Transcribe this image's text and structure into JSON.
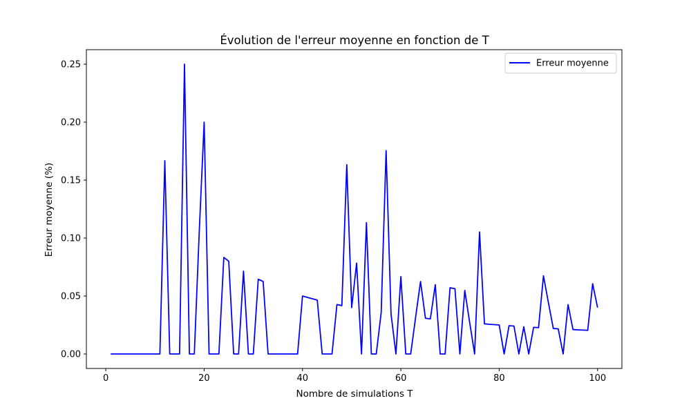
{
  "chart_data": {
    "type": "line",
    "title": "Évolution de l'erreur moyenne en fonction de T",
    "xlabel": "Nombre de simulations T",
    "ylabel": "Erreur moyenne (%)",
    "xlim": [
      -3.95,
      104.95
    ],
    "ylim": [
      -0.0125,
      0.2625
    ],
    "xticks": [
      0,
      20,
      40,
      60,
      80,
      100
    ],
    "xtick_labels": [
      "0",
      "20",
      "40",
      "60",
      "80",
      "100"
    ],
    "yticks": [
      0.0,
      0.05,
      0.1,
      0.15,
      0.2,
      0.25
    ],
    "ytick_labels": [
      "0.00",
      "0.05",
      "0.10",
      "0.15",
      "0.20",
      "0.25"
    ],
    "grid": false,
    "legend_position": "upper-right",
    "series": [
      {
        "name": "Erreur moyenne",
        "color": "#0000ff",
        "x": [
          1,
          2,
          3,
          4,
          5,
          6,
          7,
          8,
          9,
          10,
          11,
          12,
          13,
          14,
          15,
          16,
          17,
          18,
          19,
          20,
          21,
          22,
          23,
          24,
          25,
          26,
          27,
          28,
          29,
          30,
          31,
          32,
          33,
          34,
          35,
          36,
          37,
          38,
          39,
          40,
          41,
          42,
          43,
          44,
          45,
          46,
          47,
          48,
          49,
          50,
          51,
          52,
          53,
          54,
          55,
          56,
          57,
          58,
          59,
          60,
          61,
          62,
          63,
          64,
          65,
          66,
          67,
          68,
          69,
          70,
          71,
          72,
          73,
          74,
          75,
          76,
          77,
          78,
          79,
          80,
          81,
          82,
          83,
          84,
          85,
          86,
          87,
          88,
          89,
          90,
          91,
          92,
          93,
          94,
          95,
          96,
          97,
          98,
          99,
          100
        ],
        "y": [
          0,
          0,
          0,
          0,
          0,
          0,
          0,
          0,
          0,
          0,
          0,
          0.1667,
          0,
          0,
          0,
          0.25,
          0,
          0,
          0.1053,
          0.2,
          0,
          0,
          0,
          0.0833,
          0.08,
          0,
          0,
          0.0714,
          0,
          0,
          0.0645,
          0.0625,
          0,
          0,
          0,
          0,
          0,
          0,
          0,
          0.05,
          0.0488,
          0.0476,
          0.0465,
          0,
          0,
          0,
          0.0426,
          0.0417,
          0.1633,
          0.04,
          0.0784,
          0,
          0.1132,
          0,
          0,
          0.0357,
          0.1754,
          0.0345,
          0,
          0.0667,
          0,
          0,
          0.0317,
          0.0625,
          0.0308,
          0.0303,
          0.0597,
          0,
          0,
          0.0571,
          0.0563,
          0,
          0.0548,
          0.027,
          0,
          0.1053,
          0.026,
          0.0256,
          0.0253,
          0.025,
          0,
          0.0244,
          0.0241,
          0,
          0.0235,
          0,
          0.023,
          0.0227,
          0.0674,
          0.0444,
          0.022,
          0.0217,
          0,
          0.0426,
          0.0211,
          0.0208,
          0.0206,
          0.0204,
          0.0606,
          0.04
        ]
      }
    ]
  }
}
